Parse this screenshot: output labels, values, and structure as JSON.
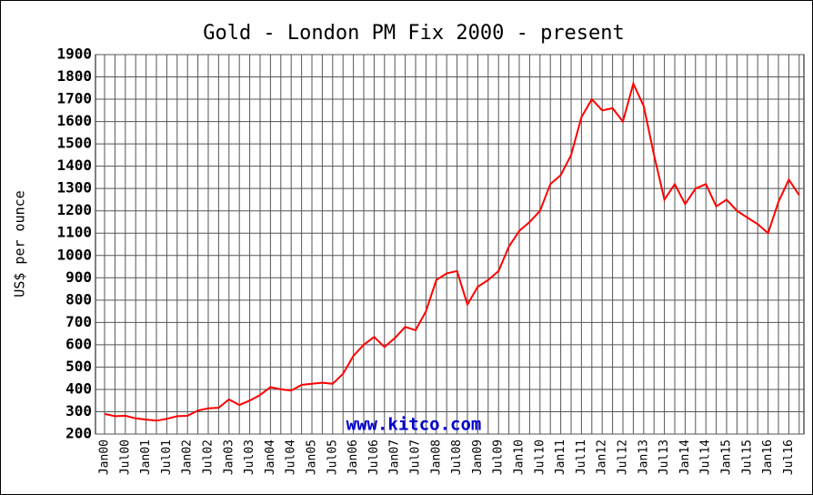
{
  "chart_data": {
    "type": "line",
    "title": "Gold - London PM Fix 2000 - present",
    "y_label": "US$ per ounce",
    "watermark": "www.kitco.com",
    "categories": [
      "Jan00",
      null,
      "Jul00",
      null,
      "Jan01",
      null,
      "Jul01",
      null,
      "Jan02",
      null,
      "Jul02",
      null,
      "Jan03",
      null,
      "Jul03",
      null,
      "Jan04",
      null,
      "Jul04",
      null,
      "Jan05",
      null,
      "Jul05",
      null,
      "Jan06",
      null,
      "Jul06",
      null,
      "Jan07",
      null,
      "Jul07",
      null,
      "Jan08",
      null,
      "Jul08",
      null,
      "Jan09",
      null,
      "Jul09",
      null,
      "Jan10",
      null,
      "Jul10",
      null,
      "Jan11",
      null,
      "Jul11",
      null,
      "Jan12",
      null,
      "Jul12",
      null,
      "Jan13",
      null,
      "Jul13",
      null,
      "Jan14",
      null,
      "Jul14",
      null,
      "Jan15",
      null,
      "Jul15",
      null,
      "Jan16",
      null,
      "Jul16",
      null
    ],
    "series": [
      {
        "name": "Gold",
        "color": "#ff0000",
        "values": [
          290,
          280,
          282,
          270,
          265,
          260,
          268,
          280,
          282,
          305,
          315,
          318,
          355,
          330,
          350,
          375,
          410,
          400,
          395,
          420,
          425,
          430,
          425,
          470,
          550,
          600,
          635,
          590,
          630,
          680,
          665,
          750,
          890,
          920,
          930,
          780,
          860,
          890,
          930,
          1040,
          1110,
          1150,
          1200,
          1320,
          1360,
          1450,
          1620,
          1700,
          1650,
          1660,
          1600,
          1770,
          1670,
          1450,
          1250,
          1320,
          1230,
          1300,
          1320,
          1220,
          1250,
          1200,
          1170,
          1140,
          1100,
          1240,
          1340,
          1270
        ]
      }
    ],
    "ylim": [
      200,
      1900
    ],
    "yticks": [
      200,
      300,
      400,
      500,
      600,
      700,
      800,
      900,
      1000,
      1100,
      1200,
      1300,
      1400,
      1500,
      1600,
      1700,
      1800,
      1900
    ],
    "grid": true
  }
}
